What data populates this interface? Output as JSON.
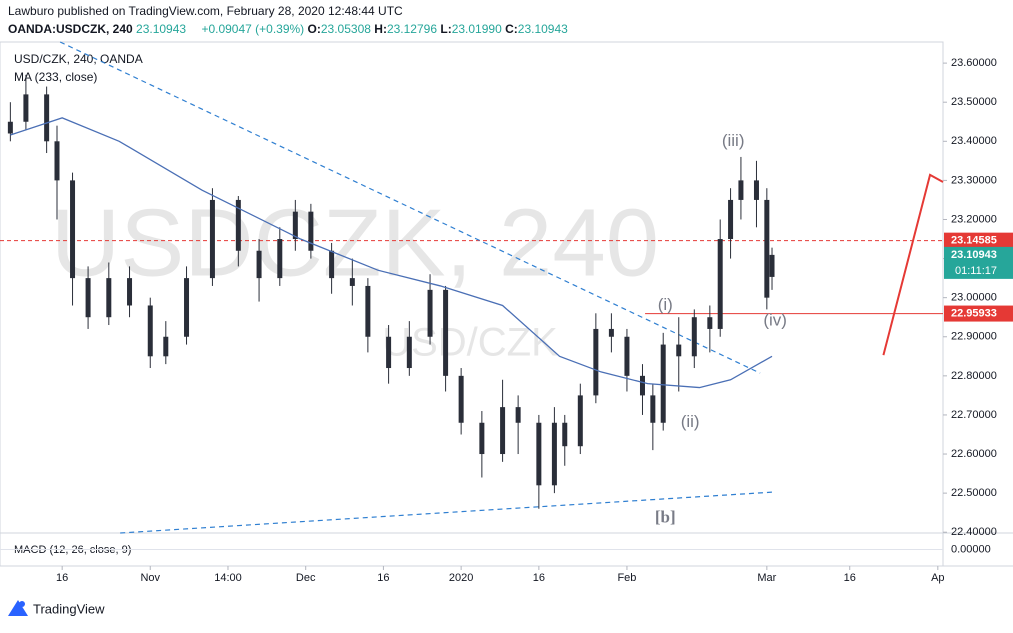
{
  "header": {
    "line1": "Lawburo published on TradingView.com, February 28, 2020 12:48:44 UTC",
    "symbol": "OANDA:USDCZK, 240",
    "last": "23.10943",
    "change": "+0.09047 (+0.39%)",
    "ohlc": [
      {
        "k": "O:",
        "v": "23.05308"
      },
      {
        "k": "H:",
        "v": "23.12796"
      },
      {
        "k": "L:",
        "v": "23.01990"
      },
      {
        "k": "C:",
        "v": "23.10943"
      }
    ]
  },
  "footer": "TradingView",
  "chart_data": {
    "type": "candlestick",
    "legend": [
      "USD/CZK, 240, OANDA",
      "MA (233, close)"
    ],
    "watermark": [
      "USDCZK, 240",
      "USD/CZK"
    ],
    "up_color": "#2a2e39",
    "down_color": "#2a2e39",
    "xlim": [
      0,
      182
    ],
    "ylim": [
      22.398,
      23.654
    ],
    "xticks": [
      {
        "value": 12,
        "label": "16"
      },
      {
        "value": 29,
        "label": "Nov"
      },
      {
        "value": 44,
        "label": "14:00"
      },
      {
        "value": 59,
        "label": "Dec"
      },
      {
        "value": 74,
        "label": "16"
      },
      {
        "value": 89,
        "label": "2020"
      },
      {
        "value": 104,
        "label": "16"
      },
      {
        "value": 121,
        "label": "Feb"
      },
      {
        "value": 148,
        "label": "Mar"
      },
      {
        "value": 164,
        "label": "16"
      },
      {
        "value": 181,
        "label": "Ap"
      }
    ],
    "yticks": [
      {
        "value": 22.4,
        "label": "22.40000"
      },
      {
        "value": 22.5,
        "label": "22.50000"
      },
      {
        "value": 22.6,
        "label": "22.60000"
      },
      {
        "value": 22.7,
        "label": "22.70000"
      },
      {
        "value": 22.8,
        "label": "22.80000"
      },
      {
        "value": 22.9,
        "label": "22.90000"
      },
      {
        "value": 23.0,
        "label": "23.00000"
      },
      {
        "value": 23.1,
        "label": "23.10000"
      },
      {
        "value": 23.2,
        "label": "23.20000"
      },
      {
        "value": 23.3,
        "label": "23.30000"
      },
      {
        "value": 23.4,
        "label": "23.40000"
      },
      {
        "value": 23.5,
        "label": "23.50000"
      },
      {
        "value": 23.6,
        "label": "23.60000"
      }
    ],
    "x": [
      2,
      5,
      9,
      11,
      14,
      17,
      21,
      25,
      29,
      32,
      36,
      41,
      46,
      50,
      54,
      57,
      60,
      64,
      68,
      71,
      75,
      79,
      83,
      86,
      89,
      93,
      97,
      100,
      104,
      107,
      109,
      112,
      115,
      118,
      121,
      124,
      126,
      128,
      131,
      134,
      137,
      139,
      141,
      143,
      146,
      148,
      149
    ],
    "open": [
      23.42,
      23.45,
      23.52,
      23.4,
      23.3,
      23.05,
      22.95,
      23.05,
      22.98,
      22.85,
      22.9,
      23.05,
      23.25,
      23.12,
      23.05,
      23.15,
      23.22,
      23.12,
      23.05,
      23.03,
      22.9,
      22.82,
      22.9,
      23.02,
      22.8,
      22.68,
      22.6,
      22.72,
      22.68,
      22.52,
      22.68,
      22.62,
      22.75,
      22.92,
      22.9,
      22.8,
      22.75,
      22.68,
      22.88,
      22.85,
      22.95,
      22.92,
      23.15,
      23.25,
      23.3,
      23.25,
      23.05308
    ],
    "high": [
      23.5,
      23.57,
      23.54,
      23.44,
      23.32,
      23.08,
      23.09,
      23.08,
      23.0,
      22.94,
      23.08,
      23.28,
      23.26,
      23.15,
      23.18,
      23.25,
      23.24,
      23.14,
      23.1,
      23.05,
      22.93,
      22.94,
      23.06,
      23.03,
      22.82,
      22.71,
      22.79,
      22.75,
      22.7,
      22.72,
      22.7,
      22.78,
      22.96,
      22.96,
      22.92,
      22.83,
      22.78,
      22.91,
      22.95,
      22.97,
      22.98,
      23.2,
      23.28,
      23.36,
      23.35,
      23.28,
      23.12796
    ],
    "low": [
      23.4,
      23.43,
      23.37,
      23.2,
      22.98,
      22.92,
      22.93,
      22.95,
      22.82,
      22.83,
      22.88,
      23.03,
      23.08,
      22.99,
      23.03,
      23.12,
      23.1,
      23.01,
      22.98,
      22.86,
      22.78,
      22.8,
      22.88,
      22.76,
      22.65,
      22.54,
      22.58,
      22.6,
      22.46,
      22.5,
      22.57,
      22.6,
      22.73,
      22.86,
      22.76,
      22.7,
      22.61,
      22.66,
      22.76,
      22.82,
      22.86,
      22.9,
      23.1,
      23.2,
      23.18,
      22.97,
      23.0199
    ],
    "close": [
      23.45,
      23.52,
      23.4,
      23.3,
      23.05,
      22.95,
      23.05,
      22.98,
      22.85,
      22.9,
      23.05,
      23.25,
      23.12,
      23.05,
      23.15,
      23.22,
      23.12,
      23.05,
      23.03,
      22.9,
      22.82,
      22.9,
      23.02,
      22.8,
      22.68,
      22.6,
      22.72,
      22.68,
      22.52,
      22.68,
      22.62,
      22.75,
      22.92,
      22.9,
      22.8,
      22.75,
      22.68,
      22.88,
      22.85,
      22.95,
      22.92,
      23.15,
      23.25,
      23.3,
      23.25,
      23.0,
      23.10943
    ],
    "ma": {
      "color": "#4a6fb5",
      "x": [
        2,
        12,
        23,
        39,
        58,
        73,
        85,
        97,
        108,
        116,
        125,
        135,
        141,
        149
      ],
      "values": [
        23.416,
        23.46,
        23.4,
        23.275,
        23.15,
        23.07,
        23.03,
        22.98,
        22.85,
        22.81,
        22.78,
        22.77,
        22.79,
        22.85
      ]
    },
    "trendlines": [
      {
        "color": "#2f7fd1",
        "dashed": true,
        "x": [
          11.6,
          146.7
        ],
        "y": [
          23.654,
          22.807
        ]
      },
      {
        "color": "#2f7fd1",
        "dashed": true,
        "x": [
          23.2,
          149.6
        ],
        "y": [
          22.398,
          22.503
        ]
      },
      {
        "color": "#e53935",
        "dashed": false,
        "x": [
          170.5,
          179.5,
          182
        ],
        "y": [
          22.853,
          23.314,
          23.296
        ]
      }
    ],
    "hlines": [
      {
        "value": 23.14585,
        "label": "23.14585",
        "color": "#e53935",
        "dashed": true,
        "from": 0
      },
      {
        "value": 22.95933,
        "label": "22.95933",
        "color": "#e53935",
        "dashed": false,
        "from": 124.5
      }
    ],
    "last_price": {
      "value": 23.10943,
      "label": "23.10943",
      "countdown": "01:11:17",
      "color": "#26a69a"
    },
    "annotations": [
      {
        "text": "(iii)",
        "x": 141.5,
        "y": 23.4
      },
      {
        "text": "(i)",
        "x": 128.4,
        "y": 22.98
      },
      {
        "text": "(ii)",
        "x": 133.2,
        "y": 22.68
      },
      {
        "text": "(iv)",
        "x": 149.6,
        "y": 22.94
      },
      {
        "text": "[b]",
        "x": 128.4,
        "y": 22.435
      }
    ],
    "macd": {
      "label": "MACD (12, 26, close, 9)",
      "ylim": [
        -0.05,
        0.05
      ],
      "yticks": [
        {
          "value": 0,
          "label": "0.00000"
        }
      ]
    }
  }
}
